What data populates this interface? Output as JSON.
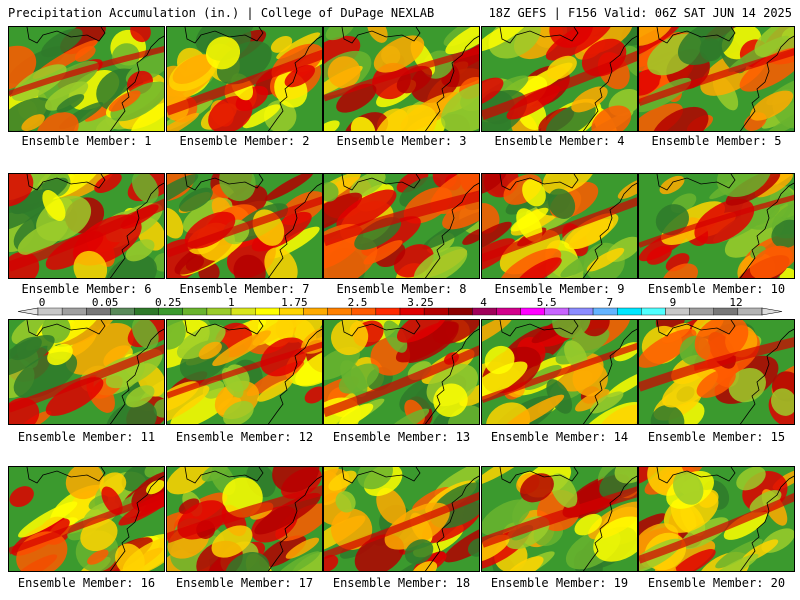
{
  "header": {
    "left": "Precipitation Accumulation (in.) | College of DuPage NEXLAB",
    "right": "18Z GEFS | F156 Valid: 06Z SAT JUN 14 2025"
  },
  "panels": [
    {
      "label": "Ensemble Member: 1"
    },
    {
      "label": "Ensemble Member: 2"
    },
    {
      "label": "Ensemble Member: 3"
    },
    {
      "label": "Ensemble Member: 4"
    },
    {
      "label": "Ensemble Member: 5"
    },
    {
      "label": "Ensemble Member: 6"
    },
    {
      "label": "Ensemble Member: 7"
    },
    {
      "label": "Ensemble Member: 8"
    },
    {
      "label": "Ensemble Member: 9"
    },
    {
      "label": "Ensemble Member: 10"
    },
    {
      "label": "Ensemble Member: 11"
    },
    {
      "label": "Ensemble Member: 12"
    },
    {
      "label": "Ensemble Member: 13"
    },
    {
      "label": "Ensemble Member: 14"
    },
    {
      "label": "Ensemble Member: 15"
    },
    {
      "label": "Ensemble Member: 16"
    },
    {
      "label": "Ensemble Member: 17"
    },
    {
      "label": "Ensemble Member: 18"
    },
    {
      "label": "Ensemble Member: 19"
    },
    {
      "label": "Ensemble Member: 20"
    }
  ],
  "colorbar": {
    "tick_labels": [
      "0",
      "0.05",
      "0.25",
      "1",
      "1.75",
      "2.5",
      "3.25",
      "4",
      "5.5",
      "7",
      "9",
      "12"
    ],
    "colors": [
      "#c8c8c8",
      "#a0a0a0",
      "#787878",
      "#5a8a5a",
      "#2f7a2a",
      "#3b9a2e",
      "#6ab42e",
      "#9bcc2a",
      "#d9e61c",
      "#ffff00",
      "#ffd400",
      "#ffaa00",
      "#ff8000",
      "#ff5a00",
      "#ff2a00",
      "#e00000",
      "#b40000",
      "#8c0000",
      "#a0005a",
      "#d2008c",
      "#ff00ff",
      "#c864ff",
      "#8c8cff",
      "#64b4ff",
      "#00e6ff",
      "#50ffff",
      "#c8c8c8",
      "#a0a0a0",
      "#787878",
      "#b4b4b4"
    ]
  }
}
